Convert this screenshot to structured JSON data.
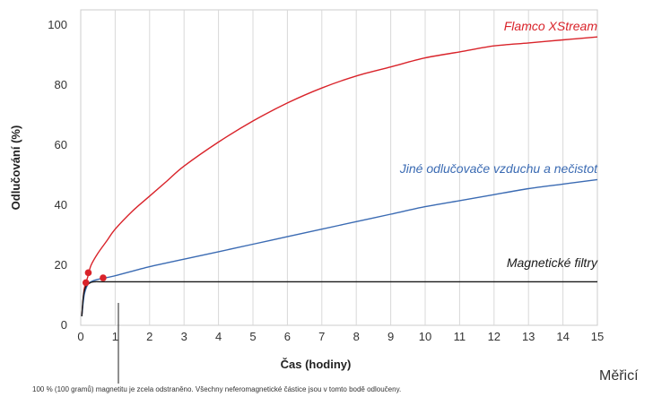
{
  "chart_data": {
    "type": "line",
    "xlabel": "Čas (hodiny)",
    "ylabel": "Odlučování (%)",
    "xlim": [
      0,
      15
    ],
    "ylim": [
      0,
      105
    ],
    "x_ticks": [
      "0",
      "1",
      "2",
      "3",
      "4",
      "5",
      "6",
      "7",
      "8",
      "9",
      "10",
      "11",
      "12",
      "13",
      "14",
      "15"
    ],
    "y_ticks": [
      "0",
      "20",
      "40",
      "60",
      "80",
      "100"
    ],
    "grid": "vertical",
    "series": [
      {
        "name": "Flamco XStream",
        "color": "#d9232a",
        "x": [
          0.03,
          0.1,
          0.2,
          0.3,
          0.5,
          0.75,
          1,
          1.5,
          2,
          2.5,
          3,
          4,
          5,
          6,
          7,
          8,
          9,
          10,
          11,
          12,
          13,
          14,
          15
        ],
        "y": [
          3,
          12,
          16,
          20,
          24,
          28,
          32,
          38,
          43,
          48,
          53,
          61,
          68,
          74,
          79,
          83,
          86,
          89,
          91,
          93,
          94,
          95,
          96
        ]
      },
      {
        "name": "Jiné odlučovače vzduchu a nečistot",
        "color": "#3b6bb3",
        "x": [
          0.03,
          0.1,
          0.2,
          0.3,
          0.5,
          1,
          2,
          3,
          4,
          5,
          6,
          7,
          8,
          9,
          10,
          11,
          12,
          13,
          14,
          15
        ],
        "y": [
          3,
          10,
          13.5,
          14.5,
          15.3,
          16.5,
          19.5,
          22,
          24.5,
          27,
          29.5,
          32,
          34.5,
          37,
          39.5,
          41.5,
          43.5,
          45.5,
          47,
          48.5
        ]
      },
      {
        "name": "Magnetické filtry",
        "color": "#1a1a1a",
        "x": [
          0.03,
          0.08,
          0.15,
          0.25,
          0.4,
          1,
          5,
          10,
          15
        ],
        "y": [
          3,
          10,
          13,
          14,
          14.5,
          14.5,
          14.5,
          14.5,
          14.5
        ]
      }
    ],
    "markers": [
      {
        "x": 0.15,
        "y": 14.2,
        "color": "#d9232a"
      },
      {
        "x": 0.22,
        "y": 17.5,
        "color": "#d9232a"
      },
      {
        "x": 0.65,
        "y": 15.8,
        "color": "#d9232a"
      }
    ],
    "annotation": "100 % (100 gramů) magnetitu je zcela odstraněno. Všechny neferomagnetické částice jsou v tomto bodě odloučeny.",
    "cut_off_text": "Měřicí"
  }
}
